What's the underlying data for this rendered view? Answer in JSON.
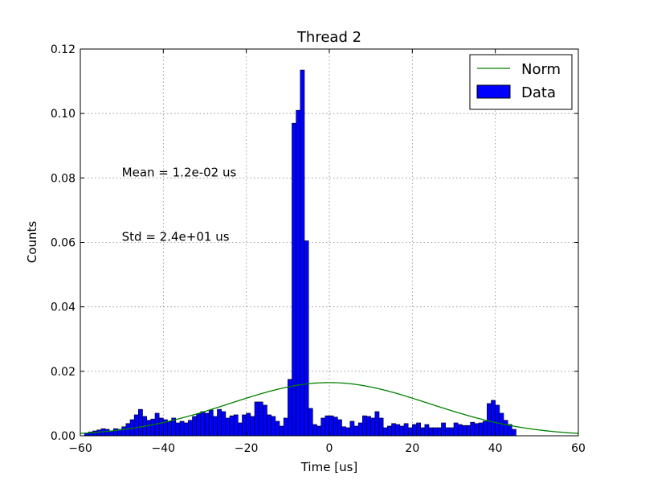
{
  "chart_data": {
    "type": "bar",
    "title": "Thread 2",
    "xlabel": "Time [us]",
    "ylabel": "Counts",
    "xlim": [
      -60,
      60
    ],
    "ylim": [
      0,
      0.12
    ],
    "xticks": [
      -60,
      -40,
      -20,
      0,
      20,
      40,
      60
    ],
    "xtick_labels": [
      "−60",
      "−40",
      "−20",
      "0",
      "20",
      "40",
      "60"
    ],
    "yticks": [
      0,
      0.02,
      0.04,
      0.06,
      0.08,
      0.1,
      0.12
    ],
    "ytick_labels": [
      "0.00",
      "0.02",
      "0.04",
      "0.06",
      "0.08",
      "0.10",
      "0.12"
    ],
    "grid": true,
    "legend_position": "top-right",
    "bin_width": 1,
    "annotations": [
      {
        "text": "Mean = 1.2e-02 us",
        "x": -50,
        "y": 0.0805
      },
      {
        "text": "Std = 2.4e+01 us",
        "x": -50,
        "y": 0.0605
      }
    ],
    "series": [
      {
        "name": "Data",
        "kind": "histogram",
        "color": "#0000ff",
        "edge_color": "#000000",
        "bin_edges_start": -59,
        "values": [
          0.0008,
          0.0012,
          0.0015,
          0.0018,
          0.0022,
          0.002,
          0.0015,
          0.0022,
          0.002,
          0.0028,
          0.0038,
          0.005,
          0.0065,
          0.0082,
          0.006,
          0.0048,
          0.0052,
          0.007,
          0.0055,
          0.005,
          0.0045,
          0.0055,
          0.004,
          0.0045,
          0.004,
          0.0048,
          0.006,
          0.0068,
          0.0075,
          0.007,
          0.008,
          0.006,
          0.0082,
          0.0075,
          0.0055,
          0.0062,
          0.0065,
          0.004,
          0.0065,
          0.007,
          0.006,
          0.0105,
          0.0105,
          0.0095,
          0.0065,
          0.006,
          0.0045,
          0.003,
          0.0055,
          0.0175,
          0.097,
          0.101,
          0.1135,
          0.0605,
          0.0085,
          0.0035,
          0.003,
          0.0055,
          0.0062,
          0.0062,
          0.0058,
          0.005,
          0.0028,
          0.0025,
          0.0045,
          0.003,
          0.004,
          0.0062,
          0.006,
          0.0055,
          0.0075,
          0.0055,
          0.0025,
          0.003,
          0.0038,
          0.0035,
          0.003,
          0.0038,
          0.0025,
          0.0035,
          0.004,
          0.0025,
          0.0035,
          0.0025,
          0.0025,
          0.0025,
          0.004,
          0.0025,
          0.0025,
          0.004,
          0.0035,
          0.0032,
          0.0032,
          0.0042,
          0.0038,
          0.004,
          0.0045,
          0.01,
          0.011,
          0.0095,
          0.007,
          0.0048,
          0.0035,
          0.002
        ]
      },
      {
        "name": "Norm",
        "kind": "line",
        "color": "#008000",
        "mean": 0.012,
        "std": 24,
        "peak": 0.0165
      }
    ]
  }
}
